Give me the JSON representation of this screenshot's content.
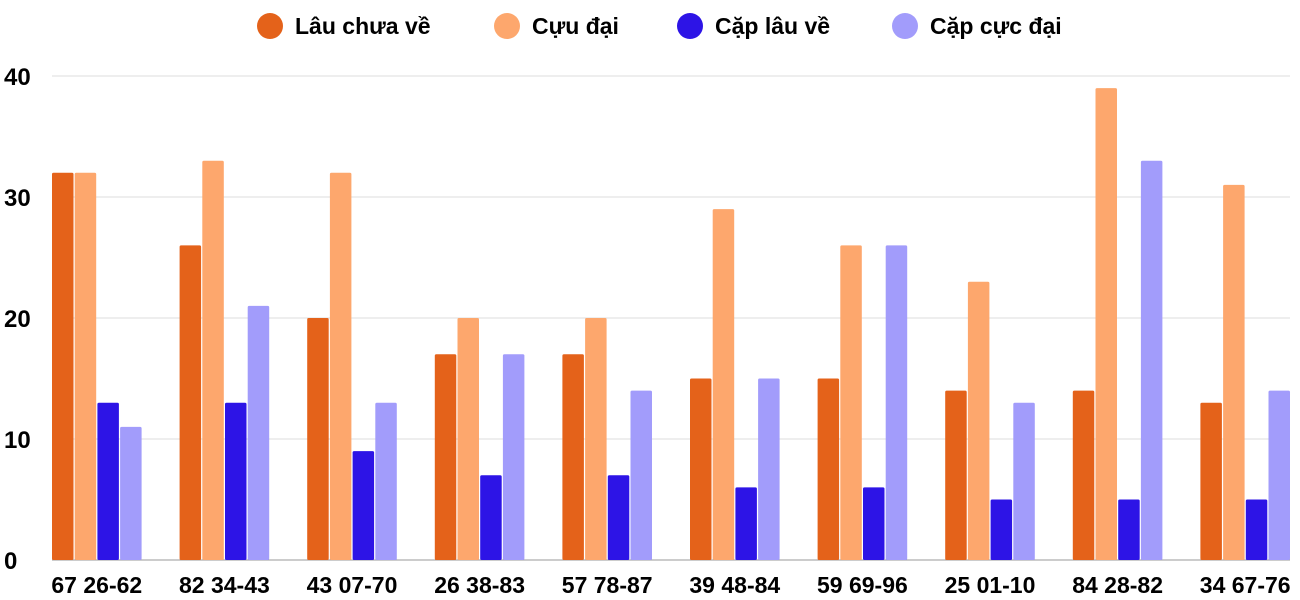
{
  "chart_data": {
    "type": "bar",
    "title": "",
    "xlabel": "",
    "ylabel": "",
    "ylim": [
      0,
      40
    ],
    "yticks": [
      0,
      10,
      20,
      30,
      40
    ],
    "grid": true,
    "legend_position": "top-center",
    "categories": [
      "67 26-62",
      "82 34-43",
      "43 07-70",
      "26 38-83",
      "57 78-87",
      "39 48-84",
      "59 69-96",
      "25 01-10",
      "84 28-82",
      "34 67-76"
    ],
    "series": [
      {
        "name": "Lâu chưa về",
        "color": "#e4621a",
        "values": [
          32,
          26,
          20,
          17,
          17,
          15,
          15,
          14,
          14,
          13
        ]
      },
      {
        "name": "Cựu đại",
        "color": "#fda76d",
        "values": [
          32,
          33,
          32,
          20,
          20,
          29,
          26,
          23,
          39,
          31
        ]
      },
      {
        "name": "Cặp lâu về",
        "color": "#2d14e6",
        "values": [
          13,
          13,
          9,
          7,
          7,
          6,
          6,
          5,
          5,
          5
        ]
      },
      {
        "name": "Cặp cực đại",
        "color": "#a29cfb",
        "values": [
          11,
          21,
          13,
          17,
          14,
          15,
          26,
          13,
          33,
          14
        ]
      }
    ]
  }
}
